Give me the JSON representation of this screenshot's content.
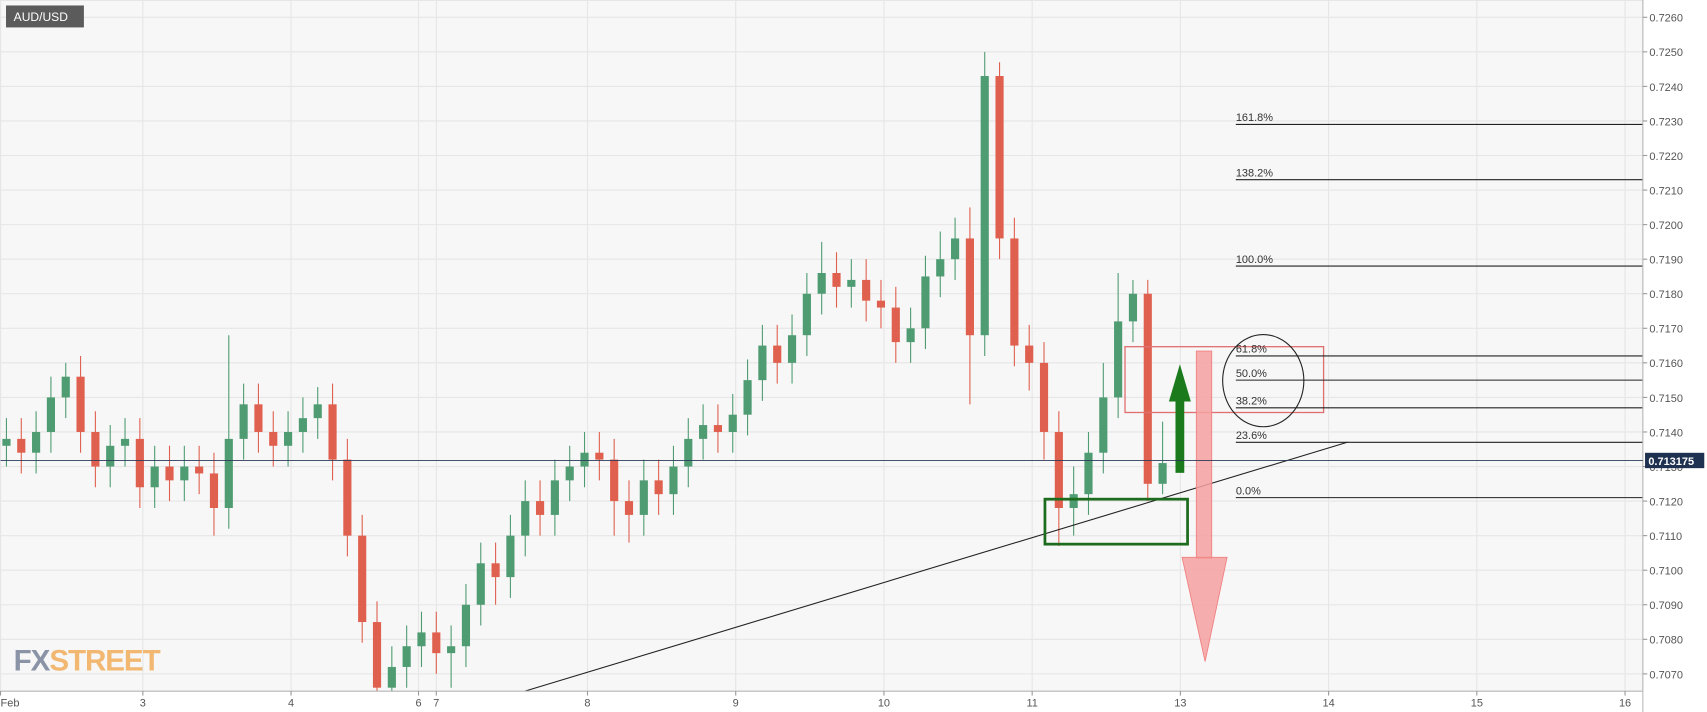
{
  "chart_data": {
    "type": "candlestick",
    "title": "AUD/USD",
    "logo": [
      "FX",
      "STREET"
    ],
    "up_color": "#4f9c73",
    "down_color": "#e0604f",
    "grid": true,
    "current_price": 0.713175,
    "xlim": [
      0.04,
      11.12
    ],
    "xticks": [
      {
        "value": 0.04,
        "label": "Feb"
      },
      {
        "value": 1,
        "label": "3"
      },
      {
        "value": 2,
        "label": "4"
      },
      {
        "value": 2.86,
        "label": "6"
      },
      {
        "value": 2.98,
        "label": "7"
      },
      {
        "value": 4,
        "label": "8"
      },
      {
        "value": 5,
        "label": "9"
      },
      {
        "value": 6,
        "label": "10"
      },
      {
        "value": 7,
        "label": "11"
      },
      {
        "value": 8,
        "label": "13"
      },
      {
        "value": 9,
        "label": "14"
      },
      {
        "value": 10,
        "label": "15"
      },
      {
        "value": 11,
        "label": "16"
      }
    ],
    "ylim": [
      0.7065,
      0.7265
    ],
    "yticks": [
      {
        "value": 0.707,
        "label": "0.7070"
      },
      {
        "value": 0.708,
        "label": "0.7080"
      },
      {
        "value": 0.709,
        "label": "0.7090"
      },
      {
        "value": 0.71,
        "label": "0.7100"
      },
      {
        "value": 0.711,
        "label": "0.7110"
      },
      {
        "value": 0.712,
        "label": "0.7120"
      },
      {
        "value": 0.713,
        "label": "0.7130"
      },
      {
        "value": 0.714,
        "label": "0.7140"
      },
      {
        "value": 0.715,
        "label": "0.7150"
      },
      {
        "value": 0.716,
        "label": "0.7160"
      },
      {
        "value": 0.717,
        "label": "0.7170"
      },
      {
        "value": 0.718,
        "label": "0.7180"
      },
      {
        "value": 0.719,
        "label": "0.7190"
      },
      {
        "value": 0.72,
        "label": "0.7200"
      },
      {
        "value": 0.721,
        "label": "0.7210"
      },
      {
        "value": 0.722,
        "label": "0.7220"
      },
      {
        "value": 0.723,
        "label": "0.7230"
      },
      {
        "value": 0.724,
        "label": "0.7240"
      },
      {
        "value": 0.725,
        "label": "0.7250"
      },
      {
        "value": 0.726,
        "label": "0.7260"
      }
    ],
    "fib_levels": [
      {
        "label": "161.8%",
        "value": 0.7229
      },
      {
        "label": "138.2%",
        "value": 0.7213
      },
      {
        "label": "100.0%",
        "value": 0.7188
      },
      {
        "label": "61.8%",
        "value": 0.7162
      },
      {
        "label": "50.0%",
        "value": 0.7155
      },
      {
        "label": "38.2%",
        "value": 0.7147
      },
      {
        "label": "23.6%",
        "value": 0.7137
      },
      {
        "label": "0.0%",
        "value": 0.7121
      }
    ],
    "x": [
      0.08,
      0.18,
      0.28,
      0.38,
      0.48,
      0.58,
      0.68,
      0.78,
      0.88,
      0.98,
      1.08,
      1.18,
      1.28,
      1.38,
      1.48,
      1.58,
      1.68,
      1.78,
      1.88,
      1.98,
      2.08,
      2.18,
      2.28,
      2.38,
      2.48,
      2.58,
      2.68,
      2.78,
      2.88,
      2.98,
      3.08,
      3.18,
      3.28,
      3.38,
      3.48,
      3.58,
      3.68,
      3.78,
      3.88,
      3.98,
      4.08,
      4.18,
      4.28,
      4.38,
      4.48,
      4.58,
      4.68,
      4.78,
      4.88,
      4.98,
      5.08,
      5.18,
      5.28,
      5.38,
      5.48,
      5.58,
      5.68,
      5.78,
      5.88,
      5.98,
      6.08,
      6.18,
      6.28,
      6.38,
      6.48,
      6.58,
      6.68,
      6.78,
      6.88,
      6.98,
      7.08,
      7.18,
      7.28,
      7.38,
      7.48,
      7.58,
      7.68,
      7.78,
      7.88
    ],
    "open": [
      0.7136,
      0.7138,
      0.7134,
      0.714,
      0.715,
      0.7156,
      0.714,
      0.713,
      0.7136,
      0.7138,
      0.7124,
      0.713,
      0.7126,
      0.713,
      0.7128,
      0.7118,
      0.7138,
      0.7148,
      0.714,
      0.7136,
      0.714,
      0.7144,
      0.7148,
      0.7132,
      0.711,
      0.7085,
      0.7066,
      0.7072,
      0.7078,
      0.7082,
      0.7076,
      0.7078,
      0.709,
      0.7102,
      0.7098,
      0.711,
      0.712,
      0.7116,
      0.7126,
      0.713,
      0.7134,
      0.7132,
      0.712,
      0.7116,
      0.7126,
      0.7122,
      0.713,
      0.7138,
      0.7142,
      0.714,
      0.7145,
      0.7155,
      0.7165,
      0.716,
      0.7168,
      0.718,
      0.7186,
      0.7182,
      0.7184,
      0.7178,
      0.7176,
      0.7166,
      0.717,
      0.7185,
      0.719,
      0.7196,
      0.7168,
      0.7243,
      0.7196,
      0.7165,
      0.716,
      0.714,
      0.7118,
      0.7122,
      0.7134,
      0.715,
      0.7172,
      0.718,
      0.7125
    ],
    "high": [
      0.7144,
      0.7144,
      0.7146,
      0.7156,
      0.716,
      0.7162,
      0.7146,
      0.7142,
      0.7144,
      0.7144,
      0.7136,
      0.7136,
      0.7136,
      0.7136,
      0.7134,
      0.7168,
      0.7154,
      0.7154,
      0.7146,
      0.7146,
      0.715,
      0.7153,
      0.7154,
      0.7138,
      0.7116,
      0.7091,
      0.7078,
      0.7084,
      0.7088,
      0.7088,
      0.7084,
      0.7096,
      0.7108,
      0.7108,
      0.7116,
      0.7126,
      0.7126,
      0.7132,
      0.7136,
      0.714,
      0.714,
      0.7138,
      0.7126,
      0.7132,
      0.7132,
      0.7136,
      0.7144,
      0.7148,
      0.7148,
      0.7151,
      0.7161,
      0.7171,
      0.7171,
      0.7174,
      0.7186,
      0.7195,
      0.7192,
      0.719,
      0.719,
      0.7184,
      0.7182,
      0.7176,
      0.7191,
      0.7198,
      0.7202,
      0.7205,
      0.725,
      0.7247,
      0.7202,
      0.7171,
      0.7166,
      0.7146,
      0.713,
      0.714,
      0.716,
      0.7186,
      0.7184,
      0.7184,
      0.7143
    ],
    "low": [
      0.713,
      0.7128,
      0.7128,
      0.7134,
      0.7144,
      0.7134,
      0.7124,
      0.7124,
      0.713,
      0.7118,
      0.7118,
      0.712,
      0.712,
      0.7122,
      0.711,
      0.7112,
      0.7132,
      0.7134,
      0.713,
      0.713,
      0.7134,
      0.7138,
      0.7126,
      0.7104,
      0.7079,
      0.706,
      0.706,
      0.7066,
      0.7072,
      0.707,
      0.7066,
      0.7072,
      0.7084,
      0.709,
      0.7092,
      0.7104,
      0.711,
      0.711,
      0.712,
      0.7124,
      0.7126,
      0.711,
      0.7108,
      0.711,
      0.7116,
      0.7116,
      0.7124,
      0.7132,
      0.7134,
      0.7134,
      0.7139,
      0.7149,
      0.7154,
      0.7154,
      0.7162,
      0.7174,
      0.7176,
      0.7176,
      0.7172,
      0.717,
      0.716,
      0.716,
      0.7164,
      0.7179,
      0.7184,
      0.7148,
      0.7162,
      0.719,
      0.7159,
      0.7152,
      0.7132,
      0.7107,
      0.711,
      0.7116,
      0.7128,
      0.7144,
      0.7166,
      0.712,
      0.7122
    ],
    "close": [
      0.7138,
      0.7134,
      0.714,
      0.715,
      0.7156,
      0.714,
      0.713,
      0.7136,
      0.7138,
      0.7124,
      0.713,
      0.7126,
      0.713,
      0.7128,
      0.7118,
      0.7138,
      0.7148,
      0.714,
      0.7136,
      0.714,
      0.7144,
      0.7148,
      0.7132,
      0.711,
      0.7085,
      0.7066,
      0.7072,
      0.7078,
      0.7082,
      0.7076,
      0.7078,
      0.709,
      0.7102,
      0.7098,
      0.711,
      0.712,
      0.7116,
      0.7126,
      0.713,
      0.7134,
      0.7132,
      0.712,
      0.7116,
      0.7126,
      0.7122,
      0.713,
      0.7138,
      0.7142,
      0.714,
      0.7145,
      0.7155,
      0.7165,
      0.716,
      0.7168,
      0.718,
      0.7186,
      0.7182,
      0.7184,
      0.7178,
      0.7176,
      0.7166,
      0.717,
      0.7185,
      0.719,
      0.7196,
      0.7168,
      0.7243,
      0.7196,
      0.7165,
      0.716,
      0.714,
      0.7118,
      0.7122,
      0.7134,
      0.715,
      0.7172,
      0.718,
      0.7125,
      0.7131
    ]
  }
}
